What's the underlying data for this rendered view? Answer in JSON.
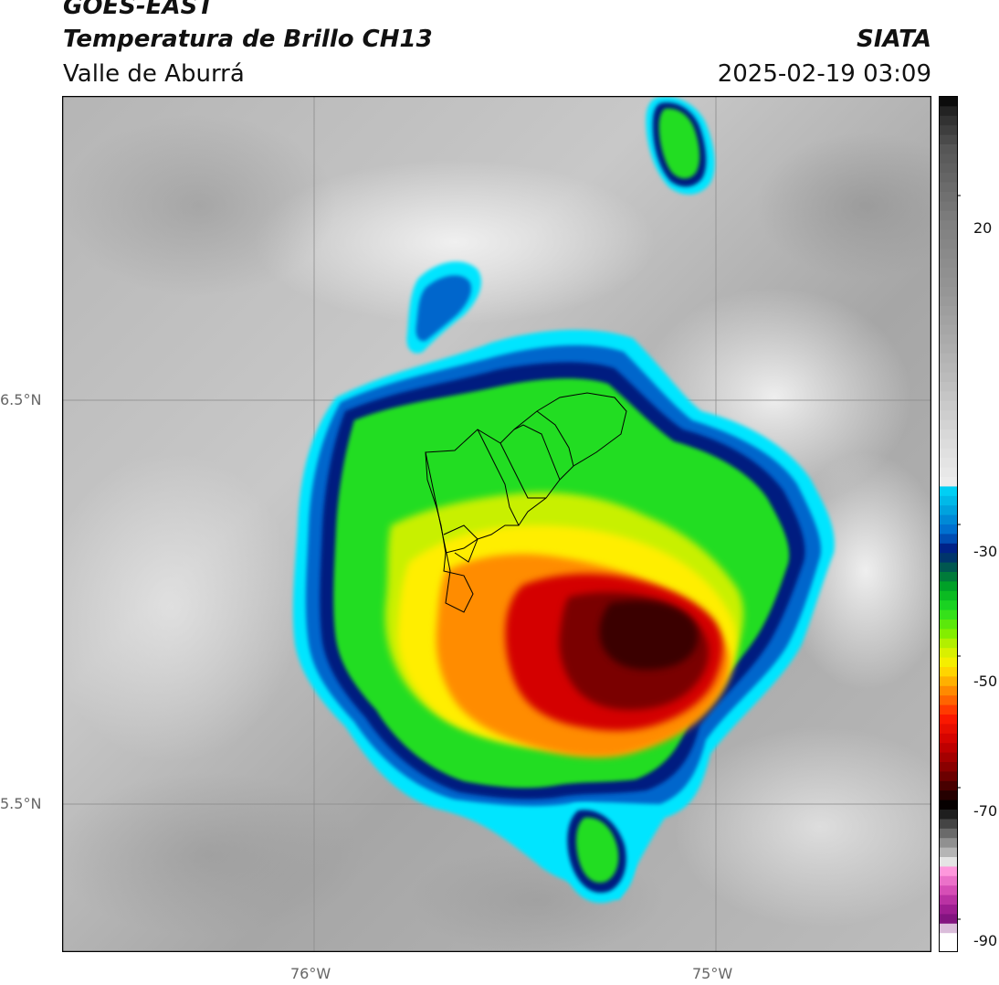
{
  "header": {
    "satellite": "GOES-EAST",
    "product": "Temperatura de Brillo CH13",
    "region": "Valle de Aburrá",
    "organization": "SIATA",
    "datetime": "2025-02-19 03:09"
  },
  "map": {
    "lat_labels": [
      "6.5°N",
      "5.5°N"
    ],
    "lon_labels": [
      "76°W",
      "75°W"
    ],
    "colors": {
      "cloud_top_red": "#d40000",
      "cloud_dark_core": "#3a0000",
      "orange": "#ff8c00",
      "yellow": "#ffee00",
      "green": "#22dd22",
      "navy": "#001a80",
      "cyan": "#00e5ff"
    }
  },
  "colorbar": {
    "ticks": [
      "20",
      "-30",
      "-50",
      "-70",
      "-90"
    ],
    "tick_values": [
      20,
      -30,
      -50,
      -70,
      -90
    ],
    "range": [
      -95,
      35
    ]
  }
}
